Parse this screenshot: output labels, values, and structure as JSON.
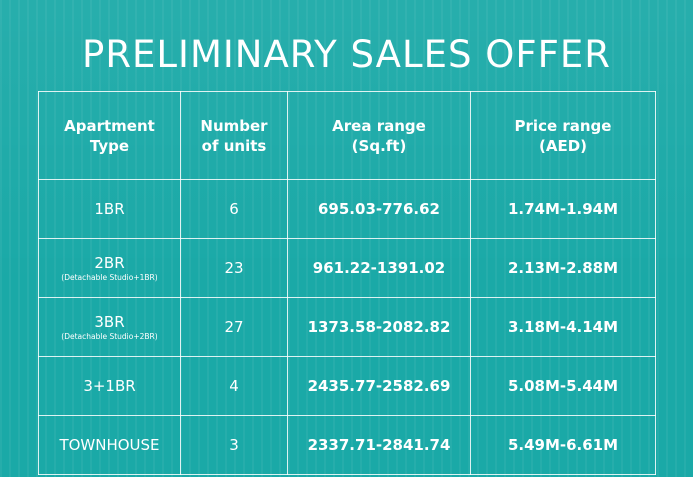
{
  "title": "PRELIMINARY SALES OFFER",
  "columns": [
    {
      "line1": "Apartment",
      "line2": "Type"
    },
    {
      "line1": "Number",
      "line2": "of units"
    },
    {
      "line1": "Area range",
      "line2": "(Sq.ft)"
    },
    {
      "line1": "Price range",
      "line2": "(AED)"
    }
  ],
  "rows": [
    {
      "type": "1BR",
      "note": "",
      "units": "6",
      "area": "695.03-776.62",
      "price": "1.74M-1.94M"
    },
    {
      "type": "2BR",
      "note": "(Detachable Studio+1BR)",
      "units": "23",
      "area": "961.22-1391.02",
      "price": "2.13M-2.88M"
    },
    {
      "type": "3BR",
      "note": "(Detachable Studio+2BR)",
      "units": "27",
      "area": "1373.58-2082.82",
      "price": "3.18M-4.14M"
    },
    {
      "type": "3+1BR",
      "note": "",
      "units": "4",
      "area": "2435.77-2582.69",
      "price": "5.08M-5.44M"
    },
    {
      "type": "TOWNHOUSE",
      "note": "",
      "units": "3",
      "area": "2337.71-2841.74",
      "price": "5.49M-6.61M"
    }
  ],
  "colors": {
    "background": "#1aa9a7",
    "text": "#ffffff"
  }
}
